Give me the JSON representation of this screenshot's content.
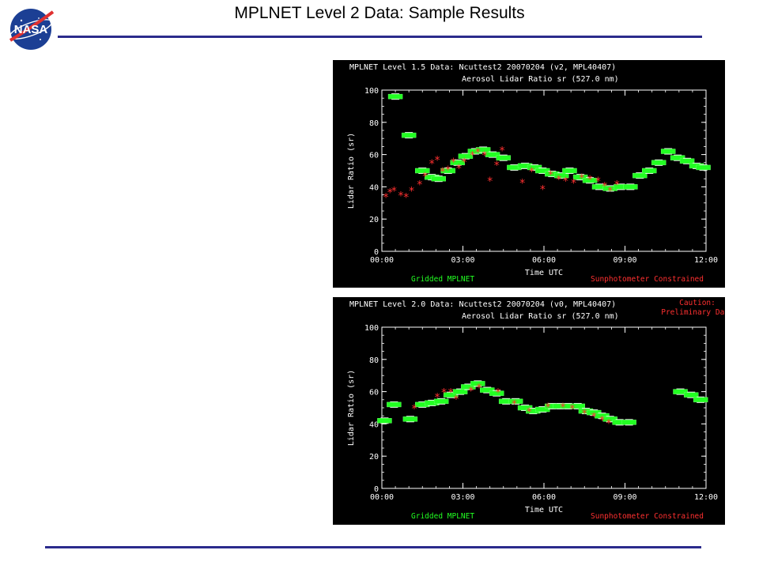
{
  "slide": {
    "title": "MPLNET Level 2 Data:  Sample Results",
    "logo_text": "NASA"
  },
  "colors": {
    "accent_rule": "#2b2b8c",
    "gridded": "#22ff22",
    "constrained": "#ff3030",
    "overlay": "#ffffff"
  },
  "chart_data": [
    {
      "type": "scatter",
      "title": "MPLNET Level 1.5 Data: Ncuttest2 20070204 (v2, MPL40407)",
      "subtitle": "Aerosol Lidar Ratio sr (527.0 nm)",
      "caution": [],
      "xlabel": "Time UTC",
      "ylabel": "Lidar Ratio (sr)",
      "xlim": [
        0,
        12
      ],
      "ylim": [
        0,
        100
      ],
      "x_ticks": [
        "00:00",
        "03:00",
        "06:00",
        "09:00",
        "12:00"
      ],
      "y_ticks": [
        "0",
        "20",
        "40",
        "60",
        "80",
        "100"
      ],
      "legend": [
        "Gridded MPLNET",
        "Sunphotometer Constrained"
      ],
      "series": [
        {
          "name": "Gridded MPLNET",
          "color": "#22ff22",
          "x": [
            0.5,
            1.0,
            1.5,
            1.85,
            2.1,
            2.45,
            2.8,
            3.1,
            3.45,
            3.75,
            4.1,
            4.5,
            4.9,
            5.3,
            5.65,
            5.95,
            6.3,
            6.65,
            6.95,
            7.35,
            7.7,
            8.05,
            8.45,
            8.85,
            9.2,
            9.55,
            9.9,
            10.25,
            10.6,
            10.95,
            11.3,
            11.65,
            11.9
          ],
          "y": [
            96,
            72,
            50,
            46,
            45,
            50,
            55,
            59,
            62,
            63,
            60,
            58,
            52,
            53,
            52,
            50,
            48,
            47,
            50,
            46,
            44,
            40,
            39,
            40,
            40,
            47,
            50,
            55,
            62,
            58,
            56,
            53,
            52
          ]
        },
        {
          "name": "Sunphotometer Constrained",
          "color": "#ff3030",
          "x": [
            0.15,
            0.3,
            0.45,
            0.7,
            0.9,
            1.1,
            1.4,
            1.6,
            1.85,
            2.05,
            2.25,
            2.45,
            2.65,
            2.85,
            3.05,
            3.35,
            3.55,
            3.8,
            4.0,
            4.25,
            4.45,
            5.2,
            5.55,
            5.95,
            6.25,
            6.55,
            6.8,
            7.1,
            7.4,
            7.7,
            8.0,
            8.25,
            8.45,
            8.7
          ],
          "y": [
            34,
            37,
            38,
            35,
            34,
            38,
            42,
            47,
            55,
            57,
            50,
            51,
            56,
            52,
            56,
            60,
            62,
            60,
            44,
            54,
            63,
            43,
            50,
            39,
            48,
            45,
            44,
            43,
            46,
            45,
            44,
            41,
            38,
            42
          ]
        }
      ]
    },
    {
      "type": "scatter",
      "title": "MPLNET Level 2.0 Data: Ncuttest2 20070204 (v0, MPL40407)",
      "subtitle": "Aerosol Lidar Ratio sr (527.0 nm)",
      "caution": [
        "Caution:",
        "Preliminary Data"
      ],
      "xlabel": "Time UTC",
      "ylabel": "Lidar Ratio (sr)",
      "xlim": [
        0,
        12
      ],
      "ylim": [
        0,
        100
      ],
      "x_ticks": [
        "00:00",
        "03:00",
        "06:00",
        "09:00",
        "12:00"
      ],
      "y_ticks": [
        "0",
        "20",
        "40",
        "60",
        "80",
        "100"
      ],
      "legend": [
        "Gridded MPLNET",
        "Sunphotometer Constrained"
      ],
      "series": [
        {
          "name": "Gridded MPLNET",
          "color": "#22ff22",
          "x": [
            0.1,
            0.45,
            1.05,
            1.5,
            1.85,
            2.2,
            2.55,
            2.9,
            3.2,
            3.55,
            3.9,
            4.25,
            4.6,
            4.95,
            5.3,
            5.6,
            5.95,
            6.3,
            6.6,
            6.9,
            7.25,
            7.55,
            7.85,
            8.15,
            8.45,
            8.8,
            9.15,
            11.05,
            11.45,
            11.8
          ],
          "y": [
            42,
            52,
            43,
            52,
            53,
            54,
            58,
            60,
            63,
            65,
            61,
            59,
            54,
            54,
            50,
            48,
            49,
            51,
            51,
            51,
            51,
            48,
            47,
            45,
            43,
            41,
            41,
            60,
            58,
            55
          ]
        },
        {
          "name": "Sunphotometer Constrained",
          "color": "#ff3030",
          "x": [
            1.2,
            2.05,
            2.3,
            2.55,
            2.75,
            3.3,
            3.6,
            4.3,
            4.9,
            5.45,
            6.15,
            6.7,
            7.05,
            7.5,
            7.85,
            8.15,
            8.4
          ],
          "y": [
            50,
            57,
            60,
            60,
            56,
            61,
            63,
            60,
            53,
            48,
            51,
            51,
            50,
            47,
            45,
            43,
            41
          ]
        }
      ]
    }
  ]
}
